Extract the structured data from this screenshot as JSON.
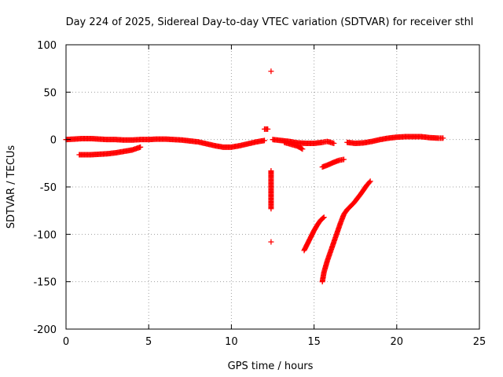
{
  "chart_data": {
    "type": "scatter",
    "title": "Day 224 of 2025, Sidereal Day-to-day VTEC variation (SDTVAR) for receiver sthl",
    "xlabel": "GPS time / hours",
    "ylabel": "SDTVAR / TECUs",
    "xlim": [
      0,
      25
    ],
    "ylim": [
      -200,
      100
    ],
    "xticks": [
      0,
      5,
      10,
      15,
      20,
      25
    ],
    "yticks": [
      -200,
      -150,
      -100,
      -50,
      0,
      50,
      100
    ],
    "grid": true,
    "marker": "+",
    "color": "#ff0000",
    "series": [
      {
        "segments": [
          [
            [
              0.0,
              0
            ],
            [
              0.5,
              0.5
            ],
            [
              1.0,
              1
            ],
            [
              1.5,
              1
            ],
            [
              2.0,
              0.5
            ],
            [
              2.5,
              0
            ],
            [
              3.0,
              0
            ],
            [
              3.5,
              -0.5
            ],
            [
              4.0,
              -0.5
            ],
            [
              4.5,
              0
            ],
            [
              5.0,
              0
            ],
            [
              5.5,
              0.5
            ],
            [
              6.0,
              0.5
            ],
            [
              6.5,
              0
            ],
            [
              7.0,
              -0.5
            ],
            [
              7.5,
              -1.5
            ],
            [
              8.0,
              -2.5
            ],
            [
              8.5,
              -4.5
            ],
            [
              9.0,
              -6.5
            ],
            [
              9.5,
              -8
            ],
            [
              10.0,
              -8
            ],
            [
              10.5,
              -6.5
            ],
            [
              11.0,
              -4.5
            ],
            [
              11.5,
              -2.5
            ],
            [
              12.0,
              -1
            ]
          ],
          [
            [
              0.8,
              -16
            ],
            [
              1.5,
              -16
            ],
            [
              2.0,
              -15.5
            ],
            [
              2.5,
              -15
            ],
            [
              3.0,
              -14
            ],
            [
              3.5,
              -12.5
            ],
            [
              4.0,
              -11
            ],
            [
              4.5,
              -8
            ]
          ],
          [
            [
              12.5,
              0
            ],
            [
              13.0,
              -1
            ],
            [
              13.5,
              -2
            ],
            [
              14.0,
              -3.5
            ],
            [
              14.5,
              -4
            ],
            [
              15.0,
              -4
            ],
            [
              15.5,
              -3
            ],
            [
              15.8,
              -2
            ],
            [
              16.2,
              -4
            ]
          ],
          [
            [
              13.2,
              -3
            ],
            [
              13.6,
              -5
            ],
            [
              14.0,
              -7
            ],
            [
              14.3,
              -10
            ]
          ],
          [
            [
              15.5,
              -29
            ],
            [
              15.8,
              -27
            ],
            [
              16.2,
              -24
            ],
            [
              16.5,
              -22
            ],
            [
              16.8,
              -21
            ]
          ],
          [
            [
              17.0,
              -3
            ],
            [
              17.5,
              -4
            ],
            [
              18.0,
              -3.5
            ],
            [
              18.5,
              -2
            ],
            [
              19.0,
              0
            ],
            [
              19.5,
              1.5
            ],
            [
              20.0,
              2.5
            ],
            [
              20.5,
              3
            ],
            [
              21.0,
              3
            ],
            [
              21.5,
              3
            ],
            [
              22.0,
              2
            ],
            [
              22.5,
              1.5
            ],
            [
              22.8,
              1.5
            ]
          ],
          [
            [
              14.4,
              -117
            ],
            [
              14.6,
              -110
            ],
            [
              14.8,
              -103
            ],
            [
              15.0,
              -96
            ],
            [
              15.2,
              -90
            ],
            [
              15.4,
              -85
            ],
            [
              15.6,
              -82
            ]
          ],
          [
            [
              15.5,
              -150
            ],
            [
              15.6,
              -140
            ],
            [
              15.8,
              -128
            ],
            [
              16.0,
              -118
            ],
            [
              16.2,
              -108
            ],
            [
              16.4,
              -98
            ],
            [
              16.6,
              -88
            ],
            [
              16.8,
              -79
            ],
            [
              17.0,
              -74
            ],
            [
              17.4,
              -67
            ],
            [
              17.8,
              -58
            ],
            [
              18.2,
              -48
            ],
            [
              18.4,
              -44
            ]
          ],
          [
            [
              12.0,
              11
            ],
            [
              12.2,
              11
            ],
            [
              12.4,
              72
            ],
            [
              12.4,
              -33
            ],
            [
              12.4,
              -63
            ],
            [
              12.4,
              -73
            ],
            [
              12.4,
              -108
            ]
          ]
        ]
      }
    ]
  }
}
